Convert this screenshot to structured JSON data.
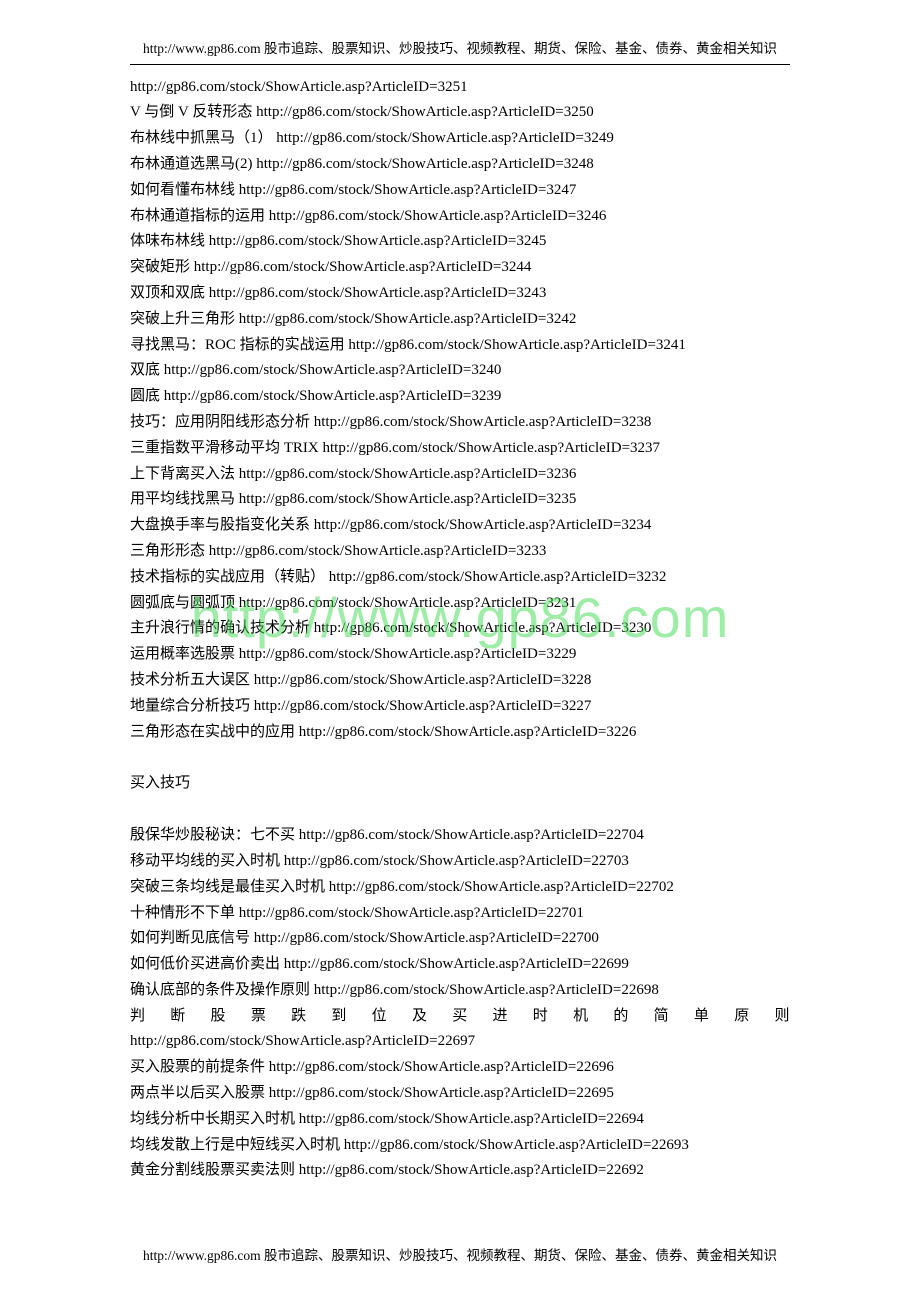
{
  "header": {
    "text": "http://www.gp86.com 股市追踪、股票知识、炒股技巧、视频教程、期货、保险、基金、债券、黄金相关知识"
  },
  "footer": {
    "text": "http://www.gp86.com 股市追踪、股票知识、炒股技巧、视频教程、期货、保险、基金、债券、黄金相关知识"
  },
  "watermark": "http://www.gp86.com",
  "section1_lines": [
    "http://gp86.com/stock/ShowArticle.asp?ArticleID=3251",
    "V 与倒 V 反转形态  http://gp86.com/stock/ShowArticle.asp?ArticleID=3250",
    "布林线中抓黑马（1）  http://gp86.com/stock/ShowArticle.asp?ArticleID=3249",
    "布林通道选黑马(2) http://gp86.com/stock/ShowArticle.asp?ArticleID=3248",
    "如何看懂布林线  http://gp86.com/stock/ShowArticle.asp?ArticleID=3247",
    "布林通道指标的运用  http://gp86.com/stock/ShowArticle.asp?ArticleID=3246",
    "体味布林线  http://gp86.com/stock/ShowArticle.asp?ArticleID=3245",
    "突破矩形  http://gp86.com/stock/ShowArticle.asp?ArticleID=3244",
    "双顶和双底  http://gp86.com/stock/ShowArticle.asp?ArticleID=3243",
    "突破上升三角形  http://gp86.com/stock/ShowArticle.asp?ArticleID=3242",
    "寻找黑马：ROC 指标的实战运用  http://gp86.com/stock/ShowArticle.asp?ArticleID=3241",
    "双底  http://gp86.com/stock/ShowArticle.asp?ArticleID=3240",
    "圆底  http://gp86.com/stock/ShowArticle.asp?ArticleID=3239",
    "技巧：应用阴阳线形态分析  http://gp86.com/stock/ShowArticle.asp?ArticleID=3238",
    "三重指数平滑移动平均 TRIX http://gp86.com/stock/ShowArticle.asp?ArticleID=3237",
    "上下背离买入法  http://gp86.com/stock/ShowArticle.asp?ArticleID=3236",
    "用平均线找黑马  http://gp86.com/stock/ShowArticle.asp?ArticleID=3235",
    "大盘换手率与股指变化关系  http://gp86.com/stock/ShowArticle.asp?ArticleID=3234",
    "三角形形态  http://gp86.com/stock/ShowArticle.asp?ArticleID=3233",
    "技术指标的实战应用（转贴）  http://gp86.com/stock/ShowArticle.asp?ArticleID=3232",
    "圆弧底与圆弧顶  http://gp86.com/stock/ShowArticle.asp?ArticleID=3231",
    "主升浪行情的确认技术分析  http://gp86.com/stock/ShowArticle.asp?ArticleID=3230",
    "运用概率选股票  http://gp86.com/stock/ShowArticle.asp?ArticleID=3229",
    "技术分析五大误区  http://gp86.com/stock/ShowArticle.asp?ArticleID=3228",
    "地量综合分析技巧  http://gp86.com/stock/ShowArticle.asp?ArticleID=3227",
    "三角形态在实战中的应用  http://gp86.com/stock/ShowArticle.asp?ArticleID=3226"
  ],
  "section2_title": "买入技巧",
  "section2_lines": [
    "殷保华炒股秘诀：七不买 http://gp86.com/stock/ShowArticle.asp?ArticleID=22704",
    "移动平均线的买入时机  http://gp86.com/stock/ShowArticle.asp?ArticleID=22703",
    "突破三条均线是最佳买入时机  http://gp86.com/stock/ShowArticle.asp?ArticleID=22702",
    "十种情形不下单  http://gp86.com/stock/ShowArticle.asp?ArticleID=22701",
    "如何判断见底信号  http://gp86.com/stock/ShowArticle.asp?ArticleID=22700",
    "如何低价买进高价卖出  http://gp86.com/stock/ShowArticle.asp?ArticleID=22699",
    "确认底部的条件及操作原则  http://gp86.com/stock/ShowArticle.asp?ArticleID=22698"
  ],
  "section2_justified": "判断股票跌到位及买进时机的简单原则",
  "section2_after_justified": [
    "http://gp86.com/stock/ShowArticle.asp?ArticleID=22697",
    "买入股票的前提条件  http://gp86.com/stock/ShowArticle.asp?ArticleID=22696",
    "两点半以后买入股票  http://gp86.com/stock/ShowArticle.asp?ArticleID=22695",
    "均线分析中长期买入时机  http://gp86.com/stock/ShowArticle.asp?ArticleID=22694",
    "均线发散上行是中短线买入时机  http://gp86.com/stock/ShowArticle.asp?ArticleID=22693",
    "黄金分割线股票买卖法则  http://gp86.com/stock/ShowArticle.asp?ArticleID=22692"
  ]
}
